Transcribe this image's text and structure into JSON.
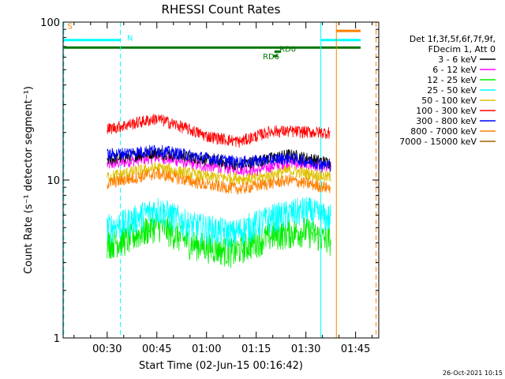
{
  "chart_data": {
    "type": "line",
    "title": "RHESSI Count Rates",
    "xlabel": "Start Time (02-Jun-15 00:16:42)",
    "ylabel": "Count Rate (s⁻¹ detector segment⁻¹)",
    "yscale": "log",
    "ylim": [
      1,
      100
    ],
    "xlim_minutes": [
      16.7,
      112
    ],
    "x_tick_labels": [
      {
        "minute": 30,
        "label": "00:30"
      },
      {
        "minute": 45,
        "label": "00:45"
      },
      {
        "minute": 60,
        "label": "01:00"
      },
      {
        "minute": 75,
        "label": "01:15"
      },
      {
        "minute": 90,
        "label": "01:30"
      },
      {
        "minute": 105,
        "label": "01:45"
      }
    ],
    "y_tick_labels": [
      {
        "value": 1,
        "label": "1"
      },
      {
        "value": 10,
        "label": "10"
      },
      {
        "value": 100,
        "label": "100"
      }
    ],
    "legend": {
      "placement": "right",
      "header": [
        "Det 1f,3f,5f,6f,7f,9f,",
        "FDecim 1, Att 0"
      ],
      "entries": [
        {
          "label": "3 - 6 keV",
          "color": "#000000"
        },
        {
          "label": "6 - 12 keV",
          "color": "#ff00ff"
        },
        {
          "label": "12 - 25 keV",
          "color": "#00ee00"
        },
        {
          "label": "25 - 50 keV",
          "color": "#00ffff"
        },
        {
          "label": "50 - 100 keV",
          "color": "#e0c000"
        },
        {
          "label": "100 - 300 keV",
          "color": "#ff0000"
        },
        {
          "label": "300 - 800 keV",
          "color": "#0000ff"
        },
        {
          "label": "800 - 7000 keV",
          "color": "#ff8000"
        },
        {
          "label": "7000 - 15000 keV",
          "color": "#a06000"
        }
      ]
    },
    "data_window_minutes": [
      30,
      97.5
    ],
    "series": [
      {
        "label": "6 - 12 keV",
        "color": "#ff00ff",
        "anchors": [
          [
            30,
            12.5
          ],
          [
            45,
            14.0
          ],
          [
            60,
            12.2
          ],
          [
            75,
            11.5
          ],
          [
            85,
            13.0
          ],
          [
            96,
            12.0
          ]
        ]
      },
      {
        "label": "3 - 6 keV",
        "color": "#000000",
        "anchors": [
          [
            30,
            13.5
          ],
          [
            45,
            15.0
          ],
          [
            60,
            13.5
          ],
          [
            70,
            12.5
          ],
          [
            85,
            14.5
          ],
          [
            96,
            13.0
          ]
        ]
      },
      {
        "label": "12 - 25 keV",
        "color": "#00ee00",
        "anchors": [
          [
            30,
            4.0
          ],
          [
            36,
            4.2
          ],
          [
            45,
            5.2
          ],
          [
            55,
            4.0
          ],
          [
            68,
            3.5
          ],
          [
            80,
            4.5
          ],
          [
            90,
            4.8
          ],
          [
            96,
            4.2
          ]
        ]
      },
      {
        "label": "25 - 50 keV",
        "color": "#00ffff",
        "anchors": [
          [
            30,
            5.0
          ],
          [
            36,
            5.4
          ],
          [
            45,
            6.6
          ],
          [
            55,
            5.2
          ],
          [
            68,
            4.6
          ],
          [
            80,
            5.8
          ],
          [
            90,
            6.5
          ],
          [
            96,
            5.8
          ]
        ]
      },
      {
        "label": "50 - 100 keV",
        "color": "#e0c000",
        "anchors": [
          [
            30,
            10.5
          ],
          [
            45,
            12.0
          ],
          [
            60,
            10.5
          ],
          [
            75,
            10.2
          ],
          [
            85,
            11.5
          ],
          [
            96,
            10.5
          ]
        ]
      },
      {
        "label": "800 - 7000 keV",
        "color": "#ff8000",
        "anchors": [
          [
            30,
            9.5
          ],
          [
            45,
            11.0
          ],
          [
            60,
            9.3
          ],
          [
            70,
            8.8
          ],
          [
            85,
            10.0
          ],
          [
            96,
            9.0
          ]
        ]
      },
      {
        "label": "300 - 800 keV",
        "color": "#0000ff",
        "anchors": [
          [
            30,
            14.5
          ],
          [
            45,
            15.5
          ],
          [
            60,
            13.8
          ],
          [
            70,
            13.0
          ],
          [
            85,
            13.8
          ],
          [
            96,
            12.5
          ]
        ]
      },
      {
        "label": "100 - 300 keV",
        "color": "#ff0000",
        "anchors": [
          [
            30,
            21.0
          ],
          [
            45,
            24.5
          ],
          [
            60,
            19.0
          ],
          [
            70,
            17.5
          ],
          [
            80,
            20.5
          ],
          [
            96,
            20.0
          ]
        ]
      }
    ],
    "annotations": [
      {
        "text": "S",
        "color": "#ff8000",
        "x_minute": 18,
        "y_value": 95
      },
      {
        "text": "N",
        "color": "#00ffff",
        "x_minute": 36,
        "y_value": 80
      },
      {
        "text": "RD0",
        "color": "#007700",
        "x_minute": 82,
        "y_value": 68
      },
      {
        "text": "RD6",
        "color": "#007700",
        "x_minute": 77,
        "y_value": 61
      }
    ],
    "flag_bars": [
      {
        "color": "#00ffff",
        "x": [
          16.7,
          34
        ],
        "y_value": 77
      },
      {
        "color": "#00ffff",
        "x": [
          94.5,
          112
        ],
        "y_value": 77
      },
      {
        "color": "#ff8000",
        "x": [
          99.2,
          112
        ],
        "y_value": 88
      },
      {
        "color": "#007700",
        "x": [
          16.7,
          112
        ],
        "y_value": 69
      },
      {
        "color": "#007700",
        "x": [
          80.5,
          82.5
        ],
        "y_value": 65
      },
      {
        "color": "#007700",
        "x": [
          80,
          81.5
        ],
        "y_value": 61
      }
    ],
    "vertical_markers": [
      {
        "x_minute": 16.9,
        "color": "#00ffff",
        "style": "dashed"
      },
      {
        "x_minute": 34,
        "color": "#00ffff",
        "style": "dashed"
      },
      {
        "x_minute": 94.5,
        "color": "#00ffff",
        "style": "solid"
      },
      {
        "x_minute": 99.2,
        "color": "#ff8000",
        "style": "solid"
      },
      {
        "x_minute": 111.2,
        "color": "#ff8000",
        "style": "dashed"
      }
    ]
  },
  "footer_date": "26-Oct-2021 10:15"
}
